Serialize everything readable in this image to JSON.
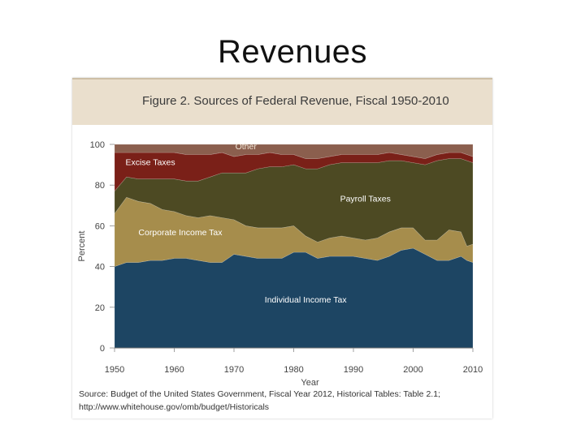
{
  "slide": {
    "title": "Revenues"
  },
  "figure": {
    "title": "Figure 2. Sources of Federal Revenue, Fiscal 1950-2010",
    "source_line1": "Source: Budget of the United States Government, Fiscal Year 2012, Historical Tables: Table 2.1;",
    "source_line2": "http://www.whitehouse.gov/omb/budget/Historicals"
  },
  "colors": {
    "individual": "#1d4563",
    "corporate": "#a68d4c",
    "payroll": "#4d4a23",
    "excise": "#7a2018",
    "other": "#8b5f4e",
    "header_bg": "#eadfcd"
  },
  "chart_data": {
    "type": "area",
    "stacked": true,
    "title": "Figure 2. Sources of Federal Revenue, Fiscal 1950-2010",
    "xlabel": "Year",
    "ylabel": "Percent",
    "xlim": [
      1950,
      2010
    ],
    "ylim": [
      0,
      100
    ],
    "x_ticks": [
      1950,
      1960,
      1970,
      1980,
      1990,
      2000,
      2010
    ],
    "y_ticks": [
      0,
      20,
      40,
      60,
      80,
      100
    ],
    "x": [
      1950,
      1952,
      1954,
      1956,
      1958,
      1960,
      1962,
      1964,
      1966,
      1968,
      1970,
      1972,
      1974,
      1976,
      1978,
      1980,
      1982,
      1984,
      1986,
      1988,
      1990,
      1992,
      1994,
      1996,
      1998,
      2000,
      2002,
      2004,
      2006,
      2008,
      2009,
      2010
    ],
    "series": [
      {
        "name": "Individual Income Tax",
        "values": [
          40,
          42,
          42,
          43,
          43,
          44,
          44,
          43,
          42,
          42,
          46,
          45,
          44,
          44,
          44,
          47,
          47,
          44,
          45,
          45,
          45,
          44,
          43,
          45,
          48,
          49,
          46,
          43,
          43,
          45,
          43,
          42
        ]
      },
      {
        "name": "Corporate Income Tax",
        "values": [
          26,
          32,
          30,
          28,
          25,
          23,
          21,
          21,
          23,
          22,
          17,
          15,
          15,
          15,
          15,
          13,
          8,
          8,
          9,
          10,
          9,
          9,
          11,
          12,
          11,
          10,
          7,
          10,
          15,
          12,
          7,
          9
        ]
      },
      {
        "name": "Payroll Taxes",
        "values": [
          11,
          10,
          11,
          12,
          15,
          16,
          17,
          18,
          19,
          22,
          23,
          26,
          29,
          30,
          30,
          30,
          33,
          36,
          36,
          36,
          37,
          38,
          37,
          35,
          33,
          32,
          37,
          39,
          35,
          36,
          42,
          40
        ]
      },
      {
        "name": "Excise Taxes",
        "values": [
          19,
          12,
          13,
          13,
          13,
          13,
          13,
          13,
          11,
          10,
          8,
          9,
          7,
          7,
          6,
          5,
          5,
          5,
          4,
          4,
          4,
          4,
          4,
          4,
          3,
          3,
          3,
          3,
          3,
          3,
          3,
          3
        ]
      },
      {
        "name": "Other",
        "values": [
          4,
          4,
          4,
          4,
          4,
          4,
          5,
          5,
          5,
          4,
          6,
          5,
          5,
          4,
          5,
          5,
          7,
          7,
          6,
          5,
          5,
          5,
          5,
          4,
          5,
          6,
          7,
          5,
          4,
          4,
          5,
          6
        ]
      }
    ],
    "labels": [
      "Other",
      "Excise Taxes",
      "Payroll Taxes",
      "Corporate Income Tax",
      "Individual Income Tax"
    ]
  }
}
